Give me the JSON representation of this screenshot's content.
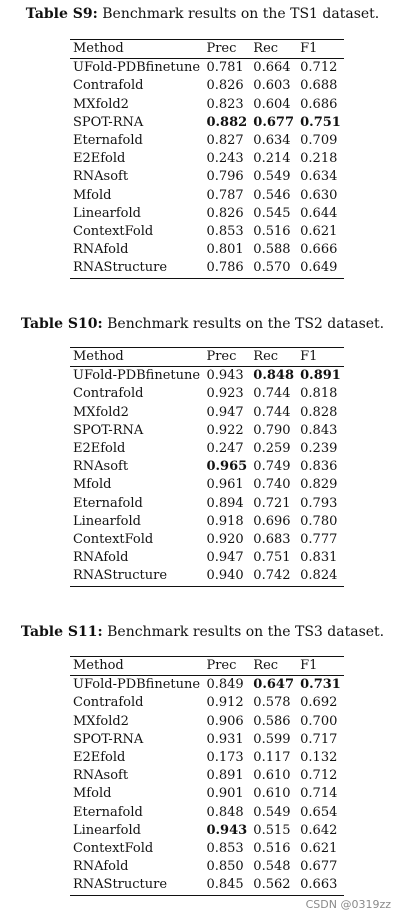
{
  "tables": [
    {
      "label": "Table S9:",
      "caption": " Benchmark results on the TS1 dataset.",
      "headers": [
        "Method",
        "Prec",
        "Rec",
        "F1"
      ],
      "rows": [
        {
          "cells": [
            "UFold-PDBfinetune",
            "0.781",
            "0.664",
            "0.712"
          ],
          "bold": []
        },
        {
          "cells": [
            "Contrafold",
            "0.826",
            "0.603",
            "0.688"
          ],
          "bold": []
        },
        {
          "cells": [
            "MXfold2",
            "0.823",
            "0.604",
            "0.686"
          ],
          "bold": []
        },
        {
          "cells": [
            "SPOT-RNA",
            "0.882",
            "0.677",
            "0.751"
          ],
          "bold": [
            1,
            2,
            3
          ]
        },
        {
          "cells": [
            "Eternafold",
            "0.827",
            "0.634",
            "0.709"
          ],
          "bold": []
        },
        {
          "cells": [
            "E2Efold",
            "0.243",
            "0.214",
            "0.218"
          ],
          "bold": []
        },
        {
          "cells": [
            "RNAsoft",
            "0.796",
            "0.549",
            "0.634"
          ],
          "bold": []
        },
        {
          "cells": [
            "Mfold",
            "0.787",
            "0.546",
            "0.630"
          ],
          "bold": []
        },
        {
          "cells": [
            "Linearfold",
            "0.826",
            "0.545",
            "0.644"
          ],
          "bold": []
        },
        {
          "cells": [
            "ContextFold",
            "0.853",
            "0.516",
            "0.621"
          ],
          "bold": []
        },
        {
          "cells": [
            "RNAfold",
            "0.801",
            "0.588",
            "0.666"
          ],
          "bold": []
        },
        {
          "cells": [
            "RNAStructure",
            "0.786",
            "0.570",
            "0.649"
          ],
          "bold": []
        }
      ]
    },
    {
      "label": "Table S10:",
      "caption": " Benchmark results on the TS2 dataset.",
      "headers": [
        "Method",
        "Prec",
        "Rec",
        "F1"
      ],
      "rows": [
        {
          "cells": [
            "UFold-PDBfinetune",
            "0.943",
            "0.848",
            "0.891"
          ],
          "bold": [
            2,
            3
          ]
        },
        {
          "cells": [
            "Contrafold",
            "0.923",
            "0.744",
            "0.818"
          ],
          "bold": []
        },
        {
          "cells": [
            "MXfold2",
            "0.947",
            "0.744",
            "0.828"
          ],
          "bold": []
        },
        {
          "cells": [
            "SPOT-RNA",
            "0.922",
            "0.790",
            "0.843"
          ],
          "bold": []
        },
        {
          "cells": [
            "E2Efold",
            "0.247",
            "0.259",
            "0.239"
          ],
          "bold": []
        },
        {
          "cells": [
            "RNAsoft",
            "0.965",
            "0.749",
            "0.836"
          ],
          "bold": [
            1
          ]
        },
        {
          "cells": [
            "Mfold",
            "0.961",
            "0.740",
            "0.829"
          ],
          "bold": []
        },
        {
          "cells": [
            "Eternafold",
            "0.894",
            "0.721",
            "0.793"
          ],
          "bold": []
        },
        {
          "cells": [
            "Linearfold",
            "0.918",
            "0.696",
            "0.780"
          ],
          "bold": []
        },
        {
          "cells": [
            "ContextFold",
            "0.920",
            "0.683",
            "0.777"
          ],
          "bold": []
        },
        {
          "cells": [
            "RNAfold",
            "0.947",
            "0.751",
            "0.831"
          ],
          "bold": []
        },
        {
          "cells": [
            "RNAStructure",
            "0.940",
            "0.742",
            "0.824"
          ],
          "bold": []
        }
      ]
    },
    {
      "label": "Table S11:",
      "caption": " Benchmark results on the TS3 dataset.",
      "headers": [
        "Method",
        "Prec",
        "Rec",
        "F1"
      ],
      "rows": [
        {
          "cells": [
            "UFold-PDBfinetune",
            "0.849",
            "0.647",
            "0.731"
          ],
          "bold": [
            2,
            3
          ]
        },
        {
          "cells": [
            "Contrafold",
            "0.912",
            "0.578",
            "0.692"
          ],
          "bold": []
        },
        {
          "cells": [
            "MXfold2",
            "0.906",
            "0.586",
            "0.700"
          ],
          "bold": []
        },
        {
          "cells": [
            "SPOT-RNA",
            "0.931",
            "0.599",
            "0.717"
          ],
          "bold": []
        },
        {
          "cells": [
            "E2Efold",
            "0.173",
            "0.117",
            "0.132"
          ],
          "bold": []
        },
        {
          "cells": [
            "RNAsoft",
            "0.891",
            "0.610",
            "0.712"
          ],
          "bold": []
        },
        {
          "cells": [
            "Mfold",
            "0.901",
            "0.610",
            "0.714"
          ],
          "bold": []
        },
        {
          "cells": [
            "Eternafold",
            "0.848",
            "0.549",
            "0.654"
          ],
          "bold": []
        },
        {
          "cells": [
            "Linearfold",
            "0.943",
            "0.515",
            "0.642"
          ],
          "bold": [
            1
          ]
        },
        {
          "cells": [
            "ContextFold",
            "0.853",
            "0.516",
            "0.621"
          ],
          "bold": []
        },
        {
          "cells": [
            "RNAfold",
            "0.850",
            "0.548",
            "0.677"
          ],
          "bold": []
        },
        {
          "cells": [
            "RNAStructure",
            "0.845",
            "0.562",
            "0.663"
          ],
          "bold": []
        }
      ]
    }
  ],
  "watermark": "CSDN @0319zz"
}
